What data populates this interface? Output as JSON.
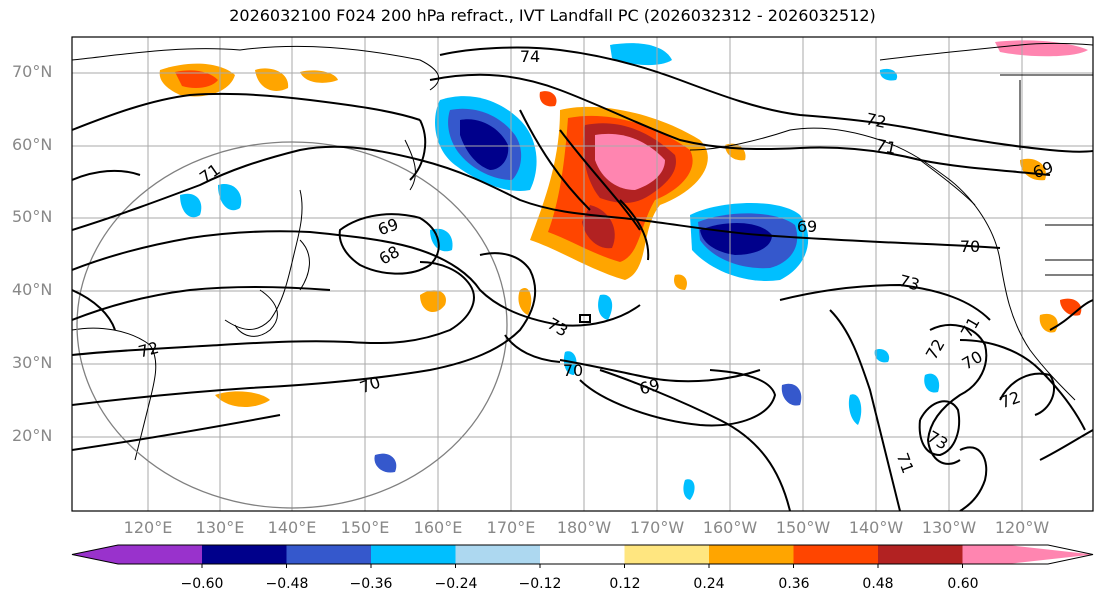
{
  "title": "2026032100 F024 200 hPa refract., IVT Landfall PC (2026032312 - 2026032512)",
  "map": {
    "lat_labels": [
      "70°N",
      "60°N",
      "50°N",
      "40°N",
      "30°N",
      "20°N"
    ],
    "lon_labels": [
      "120°E",
      "130°E",
      "140°E",
      "150°E",
      "160°E",
      "170°E",
      "180°W",
      "170°W",
      "160°W",
      "150°W",
      "140°W",
      "130°W",
      "120°W"
    ],
    "contour_labels": [
      "74",
      "72",
      "71",
      "69",
      "70",
      "73",
      "69",
      "68",
      "71",
      "73",
      "72",
      "70",
      "70",
      "69",
      "72",
      "71",
      "70",
      "72",
      "71",
      "73",
      "69"
    ]
  },
  "colorbar": {
    "ticks": [
      "−0.60",
      "−0.48",
      "−0.36",
      "−0.24",
      "−0.12",
      "0.12",
      "0.24",
      "0.36",
      "0.48",
      "0.60"
    ],
    "colors": [
      "#9932cc",
      "#00008b",
      "#3558cc",
      "#00bfff",
      "#add8f0",
      "#ffffff",
      "#ffe680",
      "#ffa500",
      "#ff4500",
      "#b22222",
      "#ff85b0"
    ]
  },
  "shading_colors": {
    "neg_dark": "#00008b",
    "neg_mid": "#3558cc",
    "neg_light": "#00bfff",
    "pos_light": "#ffe680",
    "pos_mid": "#ffa500",
    "pos_strong": "#ff4500",
    "pos_dark": "#b22222",
    "pos_max": "#ff85b0"
  }
}
